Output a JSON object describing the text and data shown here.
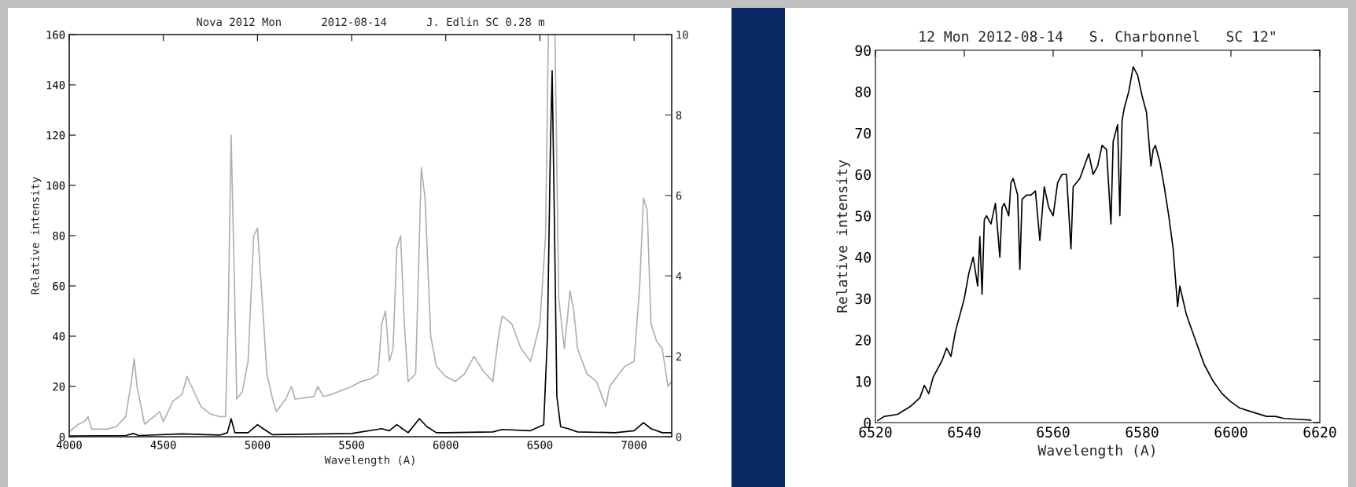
{
  "chart_data": [
    {
      "type": "line",
      "title": "Nova 2012 Mon      2012-08-14      J. Edlin SC 0.28 m",
      "xlabel": "Wavelength (A)",
      "ylabel": "Relative intensity",
      "xlim": [
        4000,
        7200
      ],
      "xticks": [
        4000,
        4500,
        5000,
        5500,
        6000,
        6500,
        7000
      ],
      "ylim": [
        0,
        160
      ],
      "yticks": [
        0,
        20,
        40,
        60,
        80,
        100,
        120,
        140,
        160
      ],
      "y2lim": [
        0,
        10
      ],
      "y2ticks": [
        0,
        2,
        4,
        6,
        8,
        10
      ],
      "series": [
        {
          "color": "#b0b0b0",
          "axis": "y",
          "x": [
            4000,
            4050,
            4080,
            4100,
            4120,
            4200,
            4250,
            4300,
            4330,
            4345,
            4360,
            4400,
            4450,
            4480,
            4500,
            4550,
            4600,
            4625,
            4650,
            4700,
            4750,
            4800,
            4830,
            4845,
            4860,
            4875,
            4890,
            4920,
            4950,
            4980,
            5000,
            5020,
            5050,
            5080,
            5100,
            5150,
            5180,
            5200,
            5300,
            5320,
            5350,
            5400,
            5500,
            5550,
            5600,
            5640,
            5660,
            5680,
            5700,
            5720,
            5740,
            5760,
            5780,
            5800,
            5840,
            5870,
            5890,
            5920,
            5950,
            6000,
            6050,
            6100,
            6150,
            6200,
            6250,
            6280,
            6300,
            6350,
            6400,
            6450,
            6500,
            6530,
            6545,
            6580,
            6600,
            6630,
            6660,
            6680,
            6700,
            6750,
            6800,
            6850,
            6870,
            6950,
            7000,
            7030,
            7050,
            7070,
            7090,
            7120,
            7150,
            7180,
            7200
          ],
          "values": [
            2,
            5,
            6,
            8,
            3,
            3,
            4,
            8,
            22,
            31,
            20,
            5,
            8,
            10,
            6,
            14,
            17,
            24,
            20,
            12,
            9,
            8,
            8,
            50,
            120,
            70,
            15,
            18,
            30,
            80,
            83,
            60,
            25,
            15,
            10,
            15,
            20,
            15,
            16,
            20,
            16,
            17,
            20,
            22,
            23,
            25,
            45,
            50,
            30,
            35,
            75,
            80,
            45,
            22,
            25,
            107,
            95,
            40,
            28,
            24,
            22,
            25,
            32,
            26,
            22,
            40,
            48,
            45,
            35,
            30,
            45,
            80,
            160,
            160,
            55,
            35,
            58,
            50,
            35,
            25,
            22,
            12,
            20,
            28,
            30,
            60,
            95,
            90,
            45,
            38,
            35,
            20,
            22
          ]
        },
        {
          "color": "#000000",
          "axis": "y2",
          "x": [
            4000,
            4300,
            4340,
            4370,
            4600,
            4800,
            4840,
            4860,
            4880,
            4950,
            5000,
            5030,
            5080,
            5500,
            5660,
            5700,
            5740,
            5770,
            5800,
            5860,
            5900,
            5950,
            6000,
            6250,
            6300,
            6450,
            6520,
            6540,
            6555,
            6565,
            6575,
            6590,
            6610,
            6650,
            6700,
            6900,
            7000,
            7050,
            7090,
            7150,
            7200
          ],
          "values": [
            0.02,
            0.03,
            0.08,
            0.03,
            0.07,
            0.04,
            0.1,
            0.45,
            0.1,
            0.1,
            0.3,
            0.2,
            0.05,
            0.08,
            0.2,
            0.15,
            0.3,
            0.2,
            0.1,
            0.45,
            0.25,
            0.1,
            0.1,
            0.12,
            0.18,
            0.15,
            0.3,
            2.5,
            7,
            9.1,
            6,
            1,
            0.25,
            0.2,
            0.12,
            0.1,
            0.15,
            0.35,
            0.2,
            0.1,
            0.1
          ]
        }
      ]
    },
    {
      "type": "line",
      "title": "12 Mon 2012-08-14   S. Charbonnel   SC 12\"",
      "xlabel": "Wavelength (A)",
      "ylabel": "Relative intensity",
      "xlim": [
        6520,
        6620
      ],
      "xticks": [
        6520,
        6540,
        6560,
        6580,
        6600,
        6620
      ],
      "ylim": [
        0,
        90
      ],
      "yticks": [
        0,
        10,
        20,
        30,
        40,
        50,
        60,
        70,
        80,
        90
      ],
      "series": [
        {
          "color": "#000000",
          "x": [
            6520.5,
            6522,
            6525,
            6528,
            6530,
            6531,
            6532,
            6533,
            6535,
            6536,
            6537,
            6538,
            6540,
            6541,
            6542,
            6543,
            6543.5,
            6544,
            6544.5,
            6545,
            6546,
            6547,
            6548,
            6548.5,
            6549,
            6550,
            6550.5,
            6551,
            6552,
            6552.5,
            6553,
            6554,
            6555,
            6556,
            6557,
            6558,
            6559,
            6560,
            6561,
            6562,
            6563,
            6564,
            6564.5,
            6566,
            6567,
            6568,
            6569,
            6570,
            6571,
            6572,
            6573,
            6573.5,
            6574,
            6574.5,
            6575,
            6575.5,
            6576,
            6577,
            6578,
            6579,
            6580,
            6581,
            6582,
            6582.5,
            6583,
            6584,
            6585,
            6586,
            6587,
            6588,
            6588.5,
            6590,
            6592,
            6594,
            6596,
            6598,
            6600,
            6602,
            6605,
            6608,
            6610,
            6612,
            6615,
            6618
          ],
          "values": [
            0.5,
            1.5,
            2,
            4,
            6,
            9,
            7,
            11,
            15,
            18,
            16,
            22,
            30,
            36,
            40,
            33,
            45,
            31,
            49,
            50,
            48,
            53,
            40,
            52,
            53,
            50,
            58,
            59,
            55,
            37,
            54,
            55,
            55,
            56,
            44,
            57,
            52,
            50,
            58,
            60,
            60,
            42,
            57,
            59,
            62,
            65,
            60,
            62,
            67,
            66,
            48,
            68,
            70,
            72,
            50,
            73,
            76,
            80,
            86,
            84,
            79,
            75,
            62,
            66,
            67,
            63,
            57,
            50,
            42,
            28,
            33,
            26,
            20,
            14,
            10,
            7,
            5,
            3.5,
            2.5,
            1.5,
            1.5,
            1,
            0.8,
            0.6
          ]
        }
      ]
    }
  ]
}
